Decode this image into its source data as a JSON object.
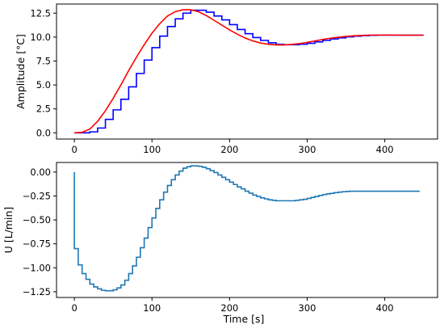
{
  "chart_data": [
    {
      "type": "line",
      "xlabel": "",
      "ylabel": "Amplitude [°C]",
      "xlim": [
        -23,
        468
      ],
      "ylim": [
        -0.65,
        13.45
      ],
      "xticks": [
        0,
        100,
        200,
        300,
        400
      ],
      "xticklabels": [
        "0",
        "100",
        "200",
        "300",
        "400"
      ],
      "yticks": [
        0.0,
        2.5,
        5.0,
        7.5,
        10.0,
        12.5
      ],
      "yticklabels": [
        "0.0",
        "2.5",
        "5.0",
        "7.5",
        "10.0",
        "12.5"
      ],
      "grid": false,
      "series": [
        {
          "style": "step",
          "color": "#0000ff",
          "x": [
            0,
            10,
            20,
            30,
            40,
            50,
            60,
            70,
            80,
            90,
            100,
            110,
            120,
            130,
            140,
            150,
            160,
            170,
            180,
            190,
            200,
            210,
            220,
            230,
            240,
            250,
            260,
            270,
            280,
            290,
            300,
            310,
            320,
            330,
            340,
            350,
            360,
            370,
            380,
            390,
            400,
            410,
            420,
            430,
            440,
            450
          ],
          "y": [
            0,
            0,
            0.1,
            0.5,
            1.4,
            2.4,
            3.5,
            4.8,
            6.2,
            7.6,
            8.9,
            10.1,
            11.1,
            11.9,
            12.5,
            12.8,
            12.8,
            12.6,
            12.2,
            11.8,
            11.3,
            10.8,
            10.35,
            9.95,
            9.65,
            9.4,
            9.25,
            9.2,
            9.2,
            9.25,
            9.35,
            9.5,
            9.65,
            9.8,
            9.92,
            10.02,
            10.1,
            10.15,
            10.18,
            10.2,
            10.2,
            10.2,
            10.2,
            10.2,
            10.2,
            10.2
          ]
        },
        {
          "style": "line",
          "color": "#ff0000",
          "x": [
            0,
            10,
            20,
            30,
            40,
            50,
            60,
            70,
            80,
            90,
            100,
            110,
            120,
            130,
            140,
            150,
            160,
            170,
            180,
            190,
            200,
            210,
            220,
            230,
            240,
            250,
            260,
            270,
            280,
            290,
            300,
            310,
            320,
            330,
            340,
            350,
            360,
            370,
            380,
            390,
            400,
            410,
            420,
            430,
            440,
            450
          ],
          "y": [
            0,
            0.05,
            0.4,
            1.2,
            2.3,
            3.6,
            5.0,
            6.5,
            7.9,
            9.2,
            10.4,
            11.4,
            12.2,
            12.65,
            12.85,
            12.85,
            12.65,
            12.25,
            11.75,
            11.25,
            10.75,
            10.3,
            9.9,
            9.6,
            9.38,
            9.24,
            9.18,
            9.18,
            9.23,
            9.32,
            9.45,
            9.6,
            9.75,
            9.88,
            9.98,
            10.07,
            10.13,
            10.17,
            10.2,
            10.21,
            10.21,
            10.21,
            10.2,
            10.2,
            10.2,
            10.2
          ]
        }
      ]
    },
    {
      "type": "line",
      "xlabel": "Time [s]",
      "ylabel": "U [L/min]",
      "xlim": [
        -23,
        468
      ],
      "ylim": [
        -1.31,
        0.1
      ],
      "xticks": [
        0,
        100,
        200,
        300,
        400
      ],
      "xticklabels": [
        "0",
        "100",
        "200",
        "300",
        "400"
      ],
      "yticks": [
        0.0,
        -0.25,
        -0.5,
        -0.75,
        -1.0,
        -1.25
      ],
      "yticklabels": [
        "0.00",
        "−0.25",
        "−0.50",
        "−0.75",
        "−1.00",
        "−1.25"
      ],
      "grid": false,
      "series": [
        {
          "style": "step",
          "color": "#1f77b4",
          "x": [
            0,
            0,
            5,
            10,
            15,
            20,
            25,
            30,
            35,
            40,
            45,
            50,
            55,
            60,
            65,
            70,
            75,
            80,
            85,
            90,
            95,
            100,
            105,
            110,
            115,
            120,
            125,
            130,
            135,
            140,
            145,
            150,
            155,
            160,
            165,
            170,
            175,
            180,
            185,
            190,
            195,
            200,
            205,
            210,
            215,
            220,
            225,
            230,
            235,
            240,
            245,
            250,
            255,
            260,
            265,
            270,
            275,
            280,
            285,
            290,
            295,
            300,
            305,
            310,
            315,
            320,
            325,
            330,
            335,
            340,
            345,
            350,
            355,
            360,
            365,
            370,
            375,
            380,
            385,
            390,
            395,
            400,
            410,
            420,
            430,
            440,
            445
          ],
          "y": [
            0,
            -0.8,
            -0.97,
            -1.06,
            -1.12,
            -1.17,
            -1.2,
            -1.22,
            -1.235,
            -1.24,
            -1.24,
            -1.23,
            -1.21,
            -1.18,
            -1.13,
            -1.06,
            -0.98,
            -0.89,
            -0.79,
            -0.69,
            -0.58,
            -0.48,
            -0.38,
            -0.29,
            -0.21,
            -0.14,
            -0.08,
            -0.03,
            0.01,
            0.04,
            0.055,
            0.065,
            0.065,
            0.06,
            0.05,
            0.035,
            0.015,
            -0.005,
            -0.03,
            -0.055,
            -0.08,
            -0.105,
            -0.13,
            -0.155,
            -0.175,
            -0.2,
            -0.22,
            -0.24,
            -0.255,
            -0.27,
            -0.28,
            -0.29,
            -0.295,
            -0.3,
            -0.3,
            -0.3,
            -0.3,
            -0.3,
            -0.295,
            -0.29,
            -0.285,
            -0.275,
            -0.265,
            -0.255,
            -0.245,
            -0.235,
            -0.228,
            -0.222,
            -0.215,
            -0.21,
            -0.205,
            -0.202,
            -0.2,
            -0.2,
            -0.2,
            -0.2,
            -0.2,
            -0.2,
            -0.2,
            -0.2,
            -0.2,
            -0.2,
            -0.2,
            -0.2,
            -0.2,
            -0.2,
            -0.2
          ]
        }
      ]
    }
  ]
}
